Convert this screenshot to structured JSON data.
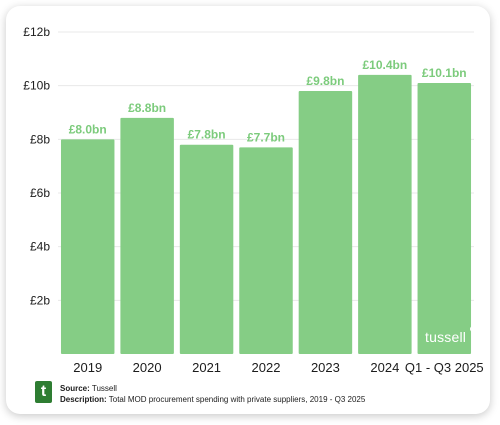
{
  "chart_data": {
    "type": "bar",
    "categories": [
      "2019",
      "2020",
      "2021",
      "2022",
      "2023",
      "2024",
      "Q1 - Q3 2025"
    ],
    "values": [
      8.0,
      8.8,
      7.8,
      7.7,
      9.8,
      10.4,
      10.1
    ],
    "data_labels": [
      "£8.0bn",
      "£8.8bn",
      "£7.8bn",
      "£7.7bn",
      "£9.8bn",
      "£10.4bn",
      "£10.1bn"
    ],
    "y_tick_values": [
      2,
      4,
      6,
      8,
      10,
      12
    ],
    "y_tick_labels": [
      "£2b",
      "£4b",
      "£6b",
      "£8b",
      "£10b",
      "£12b"
    ],
    "ylim": [
      0,
      12
    ],
    "grid": true,
    "colors": {
      "bar": "#85cd85",
      "data_label": "#7ccb7c"
    }
  },
  "watermark": "tussell",
  "footer": {
    "logo_letter": "t",
    "source_label": "Source:",
    "source_text": "Tussell",
    "description_label": "Description:",
    "description_text": "Total MOD procurement spending with private suppliers, 2019 - Q3 2025"
  }
}
